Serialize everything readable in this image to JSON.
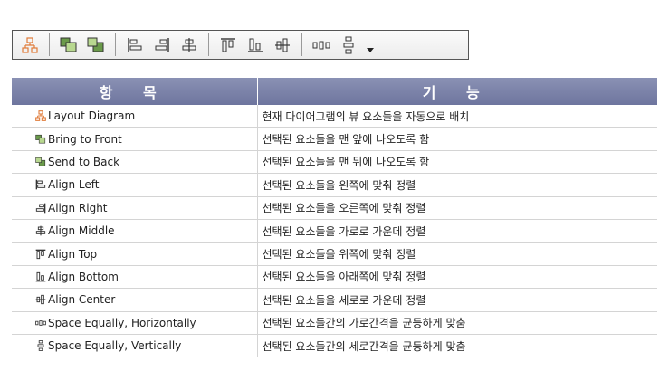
{
  "toolbar": {
    "buttons": [
      {
        "icon": "layout-diagram-icon"
      },
      {
        "icon": "bring-to-front-icon"
      },
      {
        "icon": "send-to-back-icon"
      },
      {
        "icon": "align-left-icon"
      },
      {
        "icon": "align-right-icon"
      },
      {
        "icon": "align-middle-icon"
      },
      {
        "icon": "align-top-icon"
      },
      {
        "icon": "align-bottom-icon"
      },
      {
        "icon": "align-center-icon"
      },
      {
        "icon": "space-equally-horizontally-icon"
      },
      {
        "icon": "space-equally-vertically-icon"
      }
    ],
    "dropdown_icon": "chevron-down-icon"
  },
  "table": {
    "headers": [
      "항 목",
      "기 능"
    ],
    "header_color": "#7a82a8",
    "rows": [
      {
        "icon": "layout-diagram-icon",
        "item": "Layout Diagram",
        "function": "현재 다이어그램의 뷰 요소들을 자동으로 배치"
      },
      {
        "icon": "bring-to-front-icon",
        "item": "Bring to Front",
        "function": "선택된 요소들을 맨 앞에 나오도록 함"
      },
      {
        "icon": "send-to-back-icon",
        "item": "Send to Back",
        "function": "선택된 요소들을 맨 뒤에 나오도록 함"
      },
      {
        "icon": "align-left-icon",
        "item": "Align Left",
        "function": "선택된 요소들을 왼쪽에 맞춰 정렬"
      },
      {
        "icon": "align-right-icon",
        "item": "Align Right",
        "function": "선택된 요소들을 오른쪽에 맞춰 정렬"
      },
      {
        "icon": "align-middle-icon",
        "item": "Align Middle",
        "function": "선택된 요소들을 가로로 가운데 정렬"
      },
      {
        "icon": "align-top-icon",
        "item": "Align Top",
        "function": "선택된 요소들을 위쪽에 맞춰 정렬"
      },
      {
        "icon": "align-bottom-icon",
        "item": "Align Bottom",
        "function": "선택된 요소들을 아래쪽에 맞춰 정렬"
      },
      {
        "icon": "align-center-icon",
        "item": "Align Center",
        "function": "선택된 요소들을 세로로 가운데 정렬"
      },
      {
        "icon": "space-equally-horizontally-icon",
        "item": "Space Equally, Horizontally",
        "function": "선택된 요소들간의 가로간격을 균등하게 맞춤"
      },
      {
        "icon": "space-equally-vertically-icon",
        "item": "Space Equally, Vertically",
        "function": "선택된 요소들간의 세로간격을 균등하게 맞춤"
      }
    ]
  }
}
